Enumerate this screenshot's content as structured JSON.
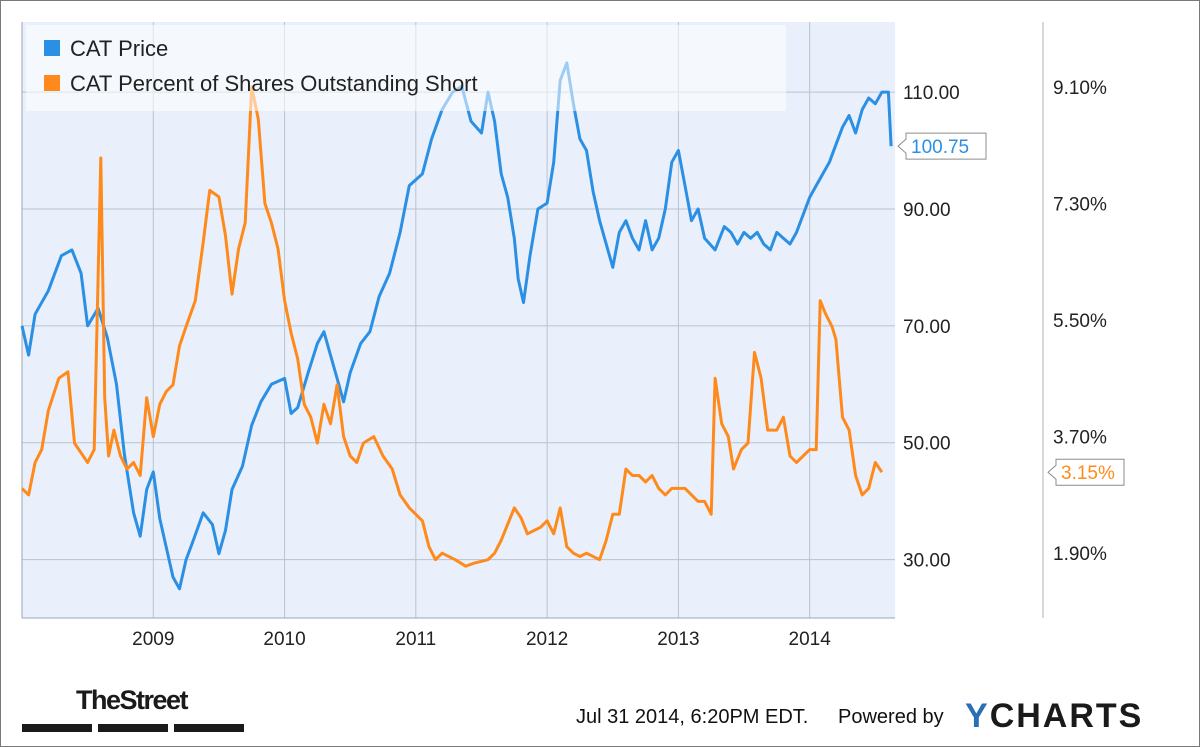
{
  "chart_data": {
    "type": "line",
    "x_axis": {
      "ticks": [
        "2009",
        "2010",
        "2011",
        "2012",
        "2013",
        "2014"
      ],
      "range": [
        2008.0,
        2014.65
      ]
    },
    "y_left": {
      "ticks": [
        "110.00",
        "90.00",
        "70.00",
        "50.00",
        "30.00"
      ],
      "range": [
        20,
        122
      ]
    },
    "y_right": {
      "ticks": [
        "9.10%",
        "7.30%",
        "5.50%",
        "3.70%",
        "1.90%"
      ],
      "range": [
        0.9,
        10.1
      ]
    },
    "grid": true,
    "legend_position": "top-left",
    "series": [
      {
        "name": "CAT Price",
        "axis": "left",
        "color": "#2b8fe4",
        "last_value_label": "100.75",
        "points": [
          [
            2008.0,
            70
          ],
          [
            2008.05,
            65
          ],
          [
            2008.1,
            72
          ],
          [
            2008.2,
            76
          ],
          [
            2008.3,
            82
          ],
          [
            2008.38,
            83
          ],
          [
            2008.45,
            79
          ],
          [
            2008.5,
            70
          ],
          [
            2008.58,
            73
          ],
          [
            2008.65,
            68
          ],
          [
            2008.72,
            60
          ],
          [
            2008.78,
            48
          ],
          [
            2008.85,
            38
          ],
          [
            2008.9,
            34
          ],
          [
            2008.95,
            42
          ],
          [
            2009.0,
            45
          ],
          [
            2009.05,
            37
          ],
          [
            2009.1,
            32
          ],
          [
            2009.15,
            27
          ],
          [
            2009.2,
            25
          ],
          [
            2009.25,
            30
          ],
          [
            2009.3,
            33
          ],
          [
            2009.38,
            38
          ],
          [
            2009.45,
            36
          ],
          [
            2009.5,
            31
          ],
          [
            2009.55,
            35
          ],
          [
            2009.6,
            42
          ],
          [
            2009.68,
            46
          ],
          [
            2009.75,
            53
          ],
          [
            2009.82,
            57
          ],
          [
            2009.9,
            60
          ],
          [
            2010.0,
            61
          ],
          [
            2010.05,
            55
          ],
          [
            2010.1,
            56
          ],
          [
            2010.18,
            62
          ],
          [
            2010.25,
            67
          ],
          [
            2010.3,
            69
          ],
          [
            2010.35,
            65
          ],
          [
            2010.4,
            61
          ],
          [
            2010.45,
            57
          ],
          [
            2010.5,
            62
          ],
          [
            2010.58,
            67
          ],
          [
            2010.65,
            69
          ],
          [
            2010.72,
            75
          ],
          [
            2010.8,
            79
          ],
          [
            2010.88,
            86
          ],
          [
            2010.95,
            94
          ],
          [
            2011.05,
            96
          ],
          [
            2011.12,
            102
          ],
          [
            2011.2,
            107
          ],
          [
            2011.28,
            110
          ],
          [
            2011.35,
            111
          ],
          [
            2011.42,
            105
          ],
          [
            2011.5,
            103
          ],
          [
            2011.55,
            110
          ],
          [
            2011.6,
            105
          ],
          [
            2011.65,
            96
          ],
          [
            2011.7,
            92
          ],
          [
            2011.75,
            85
          ],
          [
            2011.78,
            78
          ],
          [
            2011.82,
            74
          ],
          [
            2011.87,
            82
          ],
          [
            2011.93,
            90
          ],
          [
            2012.0,
            91
          ],
          [
            2012.05,
            98
          ],
          [
            2012.1,
            112
          ],
          [
            2012.15,
            115
          ],
          [
            2012.2,
            108
          ],
          [
            2012.25,
            102
          ],
          [
            2012.3,
            100
          ],
          [
            2012.35,
            93
          ],
          [
            2012.4,
            88
          ],
          [
            2012.45,
            84
          ],
          [
            2012.5,
            80
          ],
          [
            2012.55,
            86
          ],
          [
            2012.6,
            88
          ],
          [
            2012.65,
            85
          ],
          [
            2012.7,
            83
          ],
          [
            2012.75,
            88
          ],
          [
            2012.8,
            83
          ],
          [
            2012.85,
            85
          ],
          [
            2012.9,
            90
          ],
          [
            2012.95,
            98
          ],
          [
            2013.0,
            100
          ],
          [
            2013.05,
            94
          ],
          [
            2013.1,
            88
          ],
          [
            2013.15,
            90
          ],
          [
            2013.2,
            85
          ],
          [
            2013.28,
            83
          ],
          [
            2013.35,
            87
          ],
          [
            2013.4,
            86
          ],
          [
            2013.45,
            84
          ],
          [
            2013.5,
            86
          ],
          [
            2013.55,
            85
          ],
          [
            2013.6,
            86
          ],
          [
            2013.65,
            84
          ],
          [
            2013.7,
            83
          ],
          [
            2013.75,
            86
          ],
          [
            2013.8,
            85
          ],
          [
            2013.85,
            84
          ],
          [
            2013.9,
            86
          ],
          [
            2013.95,
            89
          ],
          [
            2014.0,
            92
          ],
          [
            2014.05,
            94
          ],
          [
            2014.1,
            96
          ],
          [
            2014.15,
            98
          ],
          [
            2014.2,
            101
          ],
          [
            2014.25,
            104
          ],
          [
            2014.3,
            106
          ],
          [
            2014.35,
            103
          ],
          [
            2014.4,
            107
          ],
          [
            2014.45,
            109
          ],
          [
            2014.5,
            108
          ],
          [
            2014.55,
            110
          ],
          [
            2014.6,
            110
          ],
          [
            2014.62,
            100.75
          ]
        ]
      },
      {
        "name": "CAT Percent of Shares Outstanding Short",
        "axis": "right",
        "color": "#ff8a1c",
        "last_value_label": "3.15%",
        "points": [
          [
            2008.0,
            2.9
          ],
          [
            2008.05,
            2.8
          ],
          [
            2008.1,
            3.3
          ],
          [
            2008.15,
            3.5
          ],
          [
            2008.2,
            4.1
          ],
          [
            2008.28,
            4.6
          ],
          [
            2008.35,
            4.7
          ],
          [
            2008.4,
            3.6
          ],
          [
            2008.5,
            3.3
          ],
          [
            2008.55,
            3.5
          ],
          [
            2008.6,
            8.0
          ],
          [
            2008.63,
            4.3
          ],
          [
            2008.66,
            3.4
          ],
          [
            2008.7,
            3.8
          ],
          [
            2008.75,
            3.4
          ],
          [
            2008.8,
            3.2
          ],
          [
            2008.85,
            3.3
          ],
          [
            2008.9,
            3.1
          ],
          [
            2008.95,
            4.3
          ],
          [
            2009.0,
            3.7
          ],
          [
            2009.05,
            4.2
          ],
          [
            2009.1,
            4.4
          ],
          [
            2009.15,
            4.5
          ],
          [
            2009.2,
            5.1
          ],
          [
            2009.25,
            5.4
          ],
          [
            2009.32,
            5.8
          ],
          [
            2009.38,
            6.7
          ],
          [
            2009.43,
            7.5
          ],
          [
            2009.5,
            7.4
          ],
          [
            2009.55,
            6.8
          ],
          [
            2009.6,
            5.9
          ],
          [
            2009.65,
            6.6
          ],
          [
            2009.7,
            7.0
          ],
          [
            2009.75,
            9.1
          ],
          [
            2009.8,
            8.6
          ],
          [
            2009.85,
            7.3
          ],
          [
            2009.9,
            7.0
          ],
          [
            2009.95,
            6.6
          ],
          [
            2010.0,
            5.8
          ],
          [
            2010.05,
            5.3
          ],
          [
            2010.1,
            4.9
          ],
          [
            2010.15,
            4.2
          ],
          [
            2010.2,
            4.0
          ],
          [
            2010.25,
            3.6
          ],
          [
            2010.3,
            4.2
          ],
          [
            2010.35,
            3.9
          ],
          [
            2010.4,
            4.5
          ],
          [
            2010.45,
            3.7
          ],
          [
            2010.5,
            3.4
          ],
          [
            2010.55,
            3.3
          ],
          [
            2010.6,
            3.6
          ],
          [
            2010.68,
            3.7
          ],
          [
            2010.75,
            3.4
          ],
          [
            2010.82,
            3.2
          ],
          [
            2010.88,
            2.8
          ],
          [
            2010.95,
            2.6
          ],
          [
            2011.0,
            2.5
          ],
          [
            2011.05,
            2.4
          ],
          [
            2011.1,
            2.0
          ],
          [
            2011.15,
            1.8
          ],
          [
            2011.2,
            1.9
          ],
          [
            2011.3,
            1.8
          ],
          [
            2011.38,
            1.7
          ],
          [
            2011.45,
            1.75
          ],
          [
            2011.55,
            1.8
          ],
          [
            2011.6,
            1.9
          ],
          [
            2011.65,
            2.1
          ],
          [
            2011.75,
            2.6
          ],
          [
            2011.8,
            2.45
          ],
          [
            2011.85,
            2.2
          ],
          [
            2011.9,
            2.25
          ],
          [
            2011.95,
            2.3
          ],
          [
            2012.0,
            2.4
          ],
          [
            2012.05,
            2.2
          ],
          [
            2012.1,
            2.6
          ],
          [
            2012.15,
            2.0
          ],
          [
            2012.2,
            1.9
          ],
          [
            2012.25,
            1.85
          ],
          [
            2012.3,
            1.9
          ],
          [
            2012.4,
            1.8
          ],
          [
            2012.45,
            2.1
          ],
          [
            2012.5,
            2.5
          ],
          [
            2012.55,
            2.5
          ],
          [
            2012.6,
            3.2
          ],
          [
            2012.65,
            3.1
          ],
          [
            2012.7,
            3.1
          ],
          [
            2012.75,
            3.0
          ],
          [
            2012.8,
            3.1
          ],
          [
            2012.85,
            2.9
          ],
          [
            2012.9,
            2.8
          ],
          [
            2012.95,
            2.9
          ],
          [
            2013.0,
            2.9
          ],
          [
            2013.05,
            2.9
          ],
          [
            2013.15,
            2.7
          ],
          [
            2013.2,
            2.7
          ],
          [
            2013.25,
            2.5
          ],
          [
            2013.28,
            4.6
          ],
          [
            2013.33,
            3.9
          ],
          [
            2013.38,
            3.7
          ],
          [
            2013.42,
            3.2
          ],
          [
            2013.48,
            3.5
          ],
          [
            2013.53,
            3.6
          ],
          [
            2013.58,
            5.0
          ],
          [
            2013.63,
            4.6
          ],
          [
            2013.68,
            3.8
          ],
          [
            2013.75,
            3.8
          ],
          [
            2013.8,
            4.0
          ],
          [
            2013.85,
            3.4
          ],
          [
            2013.9,
            3.3
          ],
          [
            2013.95,
            3.4
          ],
          [
            2014.0,
            3.5
          ],
          [
            2014.05,
            3.5
          ],
          [
            2014.08,
            5.8
          ],
          [
            2014.12,
            5.6
          ],
          [
            2014.17,
            5.4
          ],
          [
            2014.2,
            5.2
          ],
          [
            2014.25,
            4.0
          ],
          [
            2014.3,
            3.8
          ],
          [
            2014.35,
            3.1
          ],
          [
            2014.4,
            2.8
          ],
          [
            2014.45,
            2.9
          ],
          [
            2014.5,
            3.3
          ],
          [
            2014.55,
            3.15
          ]
        ]
      }
    ]
  },
  "footer": {
    "timestamp": "Jul 31 2014, 6:20PM EDT.",
    "powered_by": "Powered by",
    "brand_y": "Y",
    "brand_rest": "CHARTS",
    "source_logo": "TheStreet"
  },
  "colors": {
    "plot_background": "#e9f0fb",
    "grid": "#b8c3cf",
    "price": "#2b8fe4",
    "short": "#ff8a1c"
  }
}
